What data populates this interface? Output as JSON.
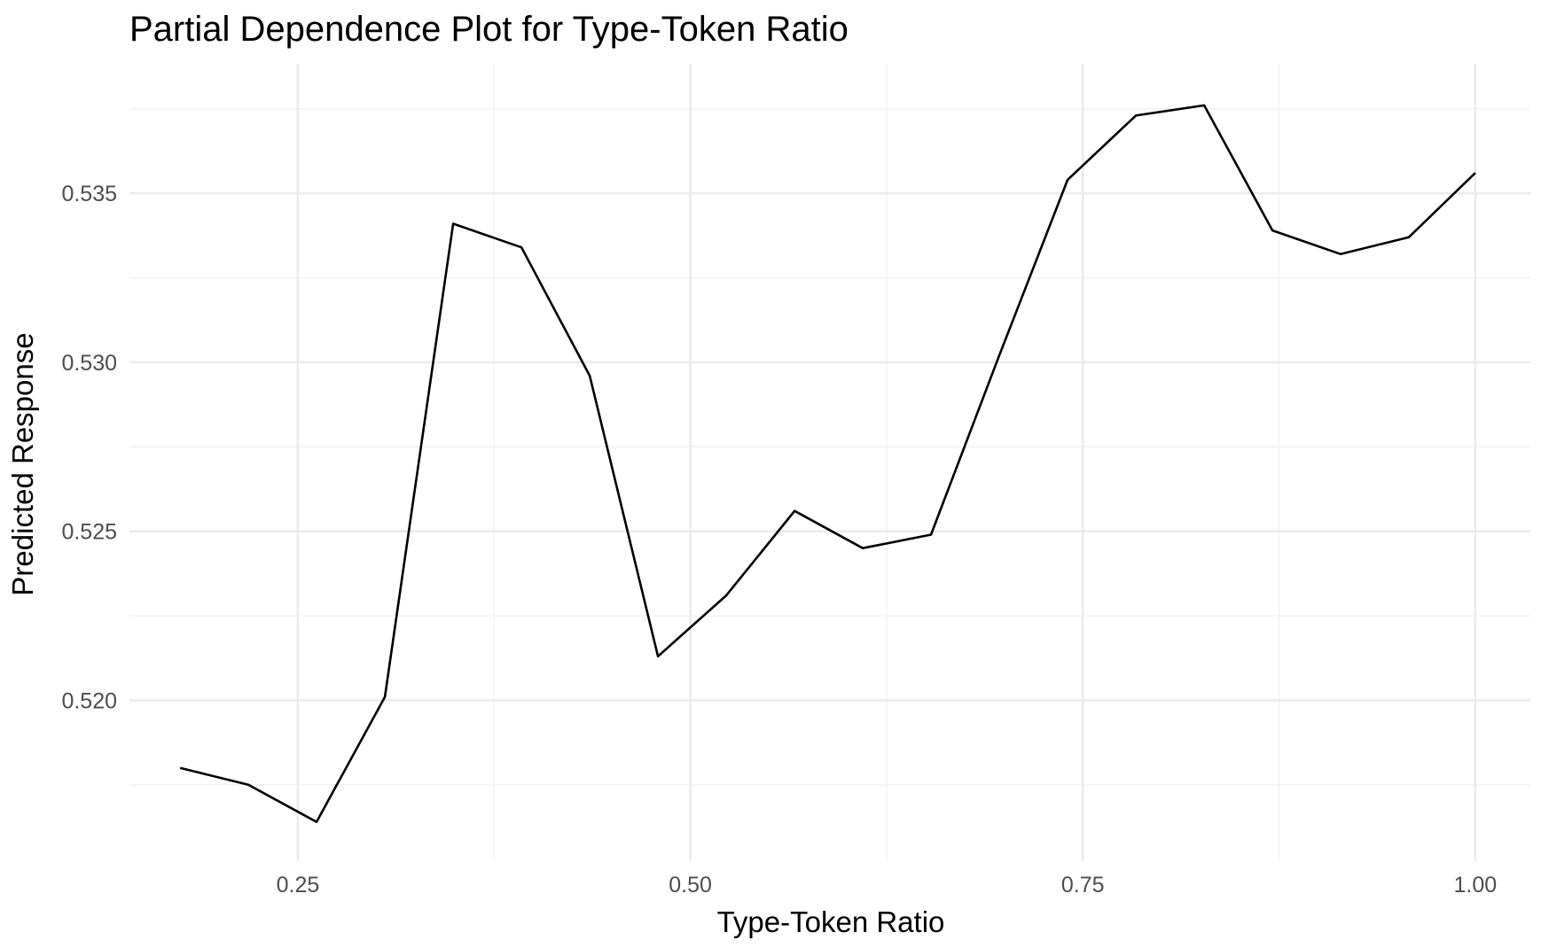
{
  "chart_data": {
    "type": "line",
    "title": "Partial Dependence Plot for Type-Token Ratio",
    "xlabel": "Type-Token Ratio",
    "ylabel": "Predicted Response",
    "xlim": [
      0.1427,
      1.0351
    ],
    "ylim": [
      0.51524,
      0.53883
    ],
    "x_ticks": [
      {
        "value": 0.25,
        "label": "0.25"
      },
      {
        "value": 0.5,
        "label": "0.50"
      },
      {
        "value": 0.75,
        "label": "0.75"
      },
      {
        "value": 1.0,
        "label": "1.00"
      }
    ],
    "x_minor_ticks": [
      0.375,
      0.625,
      0.875
    ],
    "y_ticks": [
      {
        "value": 0.52,
        "label": "0.520"
      },
      {
        "value": 0.525,
        "label": "0.525"
      },
      {
        "value": 0.53,
        "label": "0.530"
      },
      {
        "value": 0.535,
        "label": "0.535"
      }
    ],
    "y_minor_ticks": [
      0.5175,
      0.5225,
      0.5275,
      0.5325,
      0.5375
    ],
    "grid": true,
    "legend": "none",
    "series": [
      {
        "color": "#000000",
        "x": [
          0.175,
          0.2185,
          0.2619,
          0.3054,
          0.3489,
          0.3924,
          0.4359,
          0.4794,
          0.5229,
          0.5664,
          0.6098,
          0.6533,
          0.6968,
          0.7403,
          0.7838,
          0.8273,
          0.8708,
          0.9143,
          0.9577,
          1.0
        ],
        "y": [
          0.518,
          0.5175,
          0.5164,
          0.5201,
          0.5341,
          0.5334,
          0.5296,
          0.5213,
          0.5231,
          0.5256,
          0.5245,
          0.5249,
          0.5302,
          0.5354,
          0.5373,
          0.5376,
          0.5339,
          0.5332,
          0.5337,
          0.5356
        ]
      }
    ]
  }
}
